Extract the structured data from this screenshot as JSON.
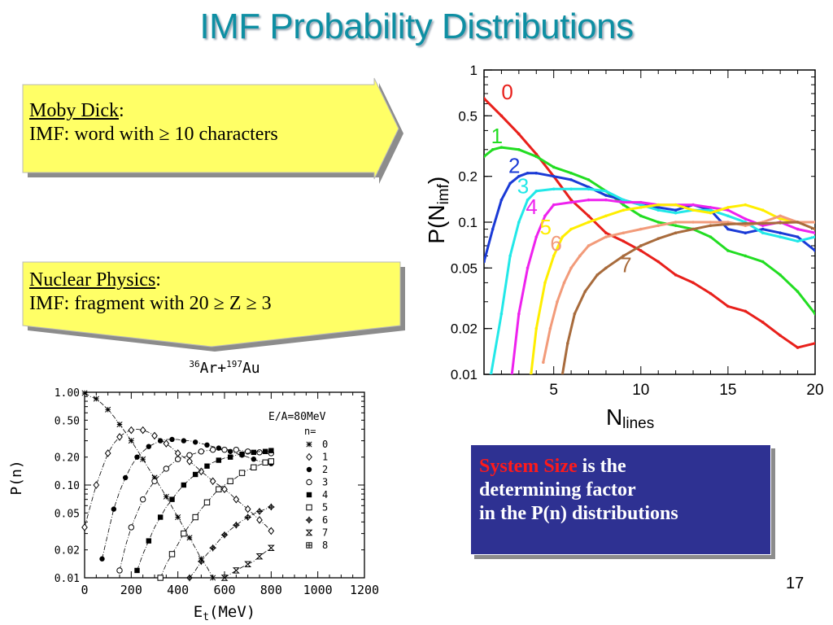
{
  "slide": {
    "title": "IMF Probability Distributions",
    "page_number": "17"
  },
  "callouts": {
    "moby": {
      "head": "Moby Dick",
      "colon": ":",
      "body": "IMF: word with ≥ 10 characters"
    },
    "nuclear": {
      "head": "Nuclear Physics",
      "colon": ":",
      "body": "IMF: fragment with 20 ≥ Z ≥ 3"
    }
  },
  "conclusion": {
    "highlight": "System Size",
    "line1_rest": " is the",
    "line2": "determining factor",
    "line3": "in the P(n) distributions"
  },
  "colors": {
    "title": "#0e8fa3",
    "callout_fill": "#ffff66",
    "conclusion_bg": "#2e3192",
    "highlight": "#ff1a1a"
  },
  "chart_data": [
    {
      "type": "line",
      "ylabel_main": "P(N",
      "ylabel_sub": "imf",
      "ylabel_close": ")",
      "xlabel_main": "N",
      "xlabel_sub": "lines",
      "xlim": [
        1,
        20
      ],
      "ylim": [
        0.01,
        1
      ],
      "yscale": "log",
      "xticks": [
        5,
        10,
        15,
        20
      ],
      "xtick_labels": [
        "5",
        "10",
        "15",
        "20"
      ],
      "yticks": [
        1,
        0.5,
        0.2,
        0.1,
        0.05,
        0.02,
        0.01
      ],
      "ytick_labels": [
        "1",
        "0.5",
        "0.2",
        "0.1",
        "0.05",
        "0.02",
        "0.01"
      ],
      "series": [
        {
          "name": "0",
          "color": "#e8201b",
          "label_at": [
            2.0,
            0.64
          ],
          "x": [
            1,
            2,
            3,
            4,
            5,
            6,
            7,
            8,
            9,
            10,
            11,
            12,
            13,
            14,
            15,
            16,
            17,
            18,
            19,
            20
          ],
          "y": [
            0.65,
            0.5,
            0.38,
            0.28,
            0.2,
            0.14,
            0.11,
            0.085,
            0.075,
            0.065,
            0.055,
            0.045,
            0.04,
            0.034,
            0.028,
            0.026,
            0.022,
            0.018,
            0.015,
            0.016
          ]
        },
        {
          "name": "1",
          "color": "#22dd22",
          "label_at": [
            1.4,
            0.33
          ],
          "x": [
            1,
            1.5,
            2,
            3,
            4,
            5,
            6,
            7,
            8,
            9,
            10,
            11,
            12,
            13,
            14,
            15,
            16,
            17,
            18,
            19,
            20
          ],
          "y": [
            0.27,
            0.3,
            0.31,
            0.3,
            0.27,
            0.23,
            0.21,
            0.19,
            0.16,
            0.13,
            0.11,
            0.1,
            0.095,
            0.09,
            0.08,
            0.065,
            0.06,
            0.055,
            0.045,
            0.035,
            0.025
          ]
        },
        {
          "name": "2",
          "color": "#1a3ad6",
          "label_at": [
            2.4,
            0.21
          ],
          "x": [
            1,
            1.5,
            2,
            2.5,
            3,
            3.5,
            4,
            5,
            6,
            7,
            8,
            9,
            10,
            11,
            12,
            13,
            14,
            15,
            16,
            17,
            18,
            19,
            20
          ],
          "y": [
            0.055,
            0.09,
            0.14,
            0.18,
            0.2,
            0.21,
            0.21,
            0.2,
            0.19,
            0.17,
            0.15,
            0.14,
            0.13,
            0.125,
            0.12,
            0.13,
            0.12,
            0.09,
            0.085,
            0.09,
            0.085,
            0.08,
            0.065
          ]
        },
        {
          "name": "3",
          "color": "#22e8e8",
          "label_at": [
            2.9,
            0.155
          ],
          "x": [
            1.4,
            2,
            2.5,
            3,
            3.5,
            4,
            5,
            6,
            7,
            8,
            9,
            10,
            11,
            12,
            13,
            14,
            15,
            16,
            17,
            18,
            19,
            20
          ],
          "y": [
            0.01,
            0.025,
            0.06,
            0.1,
            0.14,
            0.16,
            0.165,
            0.165,
            0.165,
            0.16,
            0.14,
            0.13,
            0.12,
            0.115,
            0.12,
            0.12,
            0.11,
            0.1,
            0.085,
            0.08,
            0.075,
            0.08
          ]
        },
        {
          "name": "4",
          "color": "#ee22ee",
          "label_at": [
            3.4,
            0.113
          ],
          "x": [
            2.6,
            3,
            3.5,
            4,
            4.5,
            5,
            6,
            7,
            8,
            9,
            10,
            11,
            12,
            13,
            14,
            15,
            16,
            17,
            18,
            19,
            20
          ],
          "y": [
            0.01,
            0.025,
            0.05,
            0.08,
            0.11,
            0.13,
            0.135,
            0.14,
            0.14,
            0.135,
            0.135,
            0.13,
            0.13,
            0.13,
            0.125,
            0.12,
            0.105,
            0.095,
            0.1,
            0.09,
            0.085
          ]
        },
        {
          "name": "5",
          "color": "#ffee00",
          "label_at": [
            4.2,
            0.083
          ],
          "x": [
            3.7,
            4,
            4.5,
            5,
            5.5,
            6,
            7,
            8,
            9,
            10,
            11,
            12,
            13,
            14,
            15,
            16,
            17,
            18,
            19,
            20
          ],
          "y": [
            0.01,
            0.02,
            0.04,
            0.06,
            0.08,
            0.09,
            0.1,
            0.11,
            0.12,
            0.125,
            0.13,
            0.13,
            0.12,
            0.115,
            0.125,
            0.13,
            0.12,
            0.105,
            0.1,
            0.1
          ]
        },
        {
          "name": "6",
          "color": "#f29b7a",
          "label_at": [
            4.8,
            0.065
          ],
          "x": [
            4.4,
            4.8,
            5.2,
            5.6,
            6,
            6.5,
            7,
            8,
            9,
            10,
            11,
            12,
            13,
            14,
            15,
            16,
            17,
            18,
            19,
            20
          ],
          "y": [
            0.012,
            0.02,
            0.03,
            0.04,
            0.05,
            0.06,
            0.07,
            0.08,
            0.085,
            0.09,
            0.095,
            0.1,
            0.1,
            0.1,
            0.1,
            0.095,
            0.1,
            0.11,
            0.1,
            0.1
          ]
        },
        {
          "name": "7",
          "color": "#a86b3c",
          "label_at": [
            8.8,
            0.047
          ],
          "x": [
            5.5,
            5.8,
            6.2,
            6.8,
            7.5,
            8,
            9,
            10,
            11,
            12,
            13,
            14,
            15,
            16,
            17,
            18,
            19,
            20
          ],
          "y": [
            0.01,
            0.016,
            0.025,
            0.035,
            0.045,
            0.05,
            0.06,
            0.07,
            0.078,
            0.085,
            0.09,
            0.095,
            0.097,
            0.098,
            0.098,
            0.099,
            0.1,
            0.09
          ]
        }
      ]
    },
    {
      "type": "scatter",
      "title_parts": [
        "36",
        "Ar+",
        "197",
        "Au"
      ],
      "xlabel_main": "E",
      "xlabel_sub": "t",
      "xlabel_rest": "(MeV)",
      "ylabel": "P(n)",
      "annotation": "E/A=80MeV",
      "legend_header": "n=",
      "legend_placement": "right",
      "xlim": [
        0,
        1200
      ],
      "ylim": [
        0.01,
        1
      ],
      "yscale": "log",
      "xticks": [
        0,
        200,
        400,
        600,
        800,
        1000,
        1200
      ],
      "xtick_labels": [
        "0",
        "200",
        "400",
        "600",
        "800",
        "1000",
        "1200"
      ],
      "yticks": [
        1,
        0.5,
        0.2,
        0.1,
        0.05,
        0.02,
        0.01
      ],
      "ytick_labels": [
        "1.00",
        "0.50",
        "0.20",
        "0.10",
        "0.05",
        "0.02",
        "0.01"
      ],
      "series": [
        {
          "name": "0",
          "marker": "star",
          "x": [
            0,
            25,
            50,
            75,
            100,
            125,
            150,
            175,
            200,
            225,
            250,
            275,
            300,
            325,
            350,
            375,
            400,
            425,
            450,
            475,
            500,
            525,
            550
          ],
          "y": [
            0.98,
            0.9,
            0.85,
            0.75,
            0.65,
            0.55,
            0.45,
            0.37,
            0.3,
            0.24,
            0.19,
            0.15,
            0.12,
            0.095,
            0.075,
            0.058,
            0.045,
            0.035,
            0.027,
            0.021,
            0.016,
            0.013,
            0.01
          ]
        },
        {
          "name": "1",
          "marker": "diamond",
          "x": [
            0,
            25,
            50,
            75,
            100,
            125,
            150,
            175,
            200,
            225,
            250,
            275,
            300,
            325,
            350,
            375,
            400,
            425,
            450,
            475,
            500,
            525,
            550,
            575,
            600,
            625,
            650,
            675,
            700,
            725,
            750,
            775,
            800
          ],
          "y": [
            0.035,
            0.06,
            0.1,
            0.15,
            0.22,
            0.28,
            0.33,
            0.37,
            0.39,
            0.4,
            0.39,
            0.37,
            0.34,
            0.31,
            0.28,
            0.25,
            0.22,
            0.2,
            0.18,
            0.16,
            0.14,
            0.125,
            0.11,
            0.1,
            0.09,
            0.08,
            0.07,
            0.062,
            0.055,
            0.048,
            0.042,
            0.037,
            0.032
          ]
        },
        {
          "name": "2",
          "marker": "circle-filled",
          "x": [
            75,
            100,
            125,
            150,
            175,
            200,
            225,
            250,
            275,
            300,
            325,
            350,
            375,
            400,
            425,
            450,
            475,
            500,
            525,
            550,
            575,
            600,
            625,
            650,
            675,
            700,
            725,
            750,
            775,
            800
          ],
          "y": [
            0.016,
            0.03,
            0.055,
            0.085,
            0.12,
            0.16,
            0.2,
            0.23,
            0.26,
            0.28,
            0.3,
            0.31,
            0.31,
            0.31,
            0.3,
            0.3,
            0.29,
            0.28,
            0.27,
            0.26,
            0.25,
            0.24,
            0.23,
            0.22,
            0.21,
            0.2,
            0.19,
            0.18,
            0.175,
            0.17
          ]
        },
        {
          "name": "3",
          "marker": "circle-open",
          "x": [
            150,
            175,
            200,
            225,
            250,
            275,
            300,
            325,
            350,
            375,
            400,
            425,
            450,
            475,
            500,
            525,
            550,
            575,
            600,
            625,
            650,
            675,
            700,
            725,
            750,
            775,
            800
          ],
          "y": [
            0.012,
            0.022,
            0.035,
            0.05,
            0.07,
            0.09,
            0.11,
            0.13,
            0.15,
            0.17,
            0.19,
            0.2,
            0.21,
            0.22,
            0.23,
            0.235,
            0.24,
            0.24,
            0.24,
            0.24,
            0.24,
            0.235,
            0.23,
            0.23,
            0.225,
            0.22,
            0.22
          ]
        },
        {
          "name": "4",
          "marker": "square-filled",
          "x": [
            225,
            250,
            275,
            300,
            325,
            350,
            375,
            400,
            425,
            450,
            475,
            500,
            525,
            550,
            575,
            600,
            625,
            650,
            675,
            700,
            725,
            750,
            775,
            800
          ],
          "y": [
            0.012,
            0.018,
            0.025,
            0.035,
            0.045,
            0.058,
            0.07,
            0.085,
            0.1,
            0.115,
            0.13,
            0.145,
            0.16,
            0.175,
            0.185,
            0.195,
            0.2,
            0.21,
            0.215,
            0.22,
            0.225,
            0.23,
            0.23,
            0.235
          ]
        },
        {
          "name": "5",
          "marker": "square-open",
          "x": [
            325,
            350,
            375,
            400,
            425,
            450,
            475,
            500,
            525,
            550,
            575,
            600,
            625,
            650,
            675,
            700,
            725,
            750,
            775,
            800
          ],
          "y": [
            0.01,
            0.014,
            0.018,
            0.023,
            0.03,
            0.037,
            0.045,
            0.055,
            0.065,
            0.077,
            0.09,
            0.1,
            0.11,
            0.12,
            0.135,
            0.145,
            0.155,
            0.165,
            0.175,
            0.18
          ]
        },
        {
          "name": "6",
          "marker": "plus-diamond",
          "x": [
            450,
            475,
            500,
            525,
            550,
            575,
            600,
            625,
            650,
            675,
            700,
            725,
            750,
            775,
            800
          ],
          "y": [
            0.01,
            0.012,
            0.015,
            0.018,
            0.021,
            0.025,
            0.029,
            0.033,
            0.037,
            0.041,
            0.045,
            0.049,
            0.052,
            0.055,
            0.058
          ]
        },
        {
          "name": "7",
          "marker": "hourglass",
          "x": [
            600,
            625,
            650,
            675,
            700,
            725,
            750,
            775,
            800
          ],
          "y": [
            0.01,
            0.011,
            0.012,
            0.013,
            0.014,
            0.015,
            0.017,
            0.019,
            0.021
          ]
        },
        {
          "name": "8",
          "marker": "cross-square",
          "x": [],
          "y": []
        }
      ]
    }
  ]
}
